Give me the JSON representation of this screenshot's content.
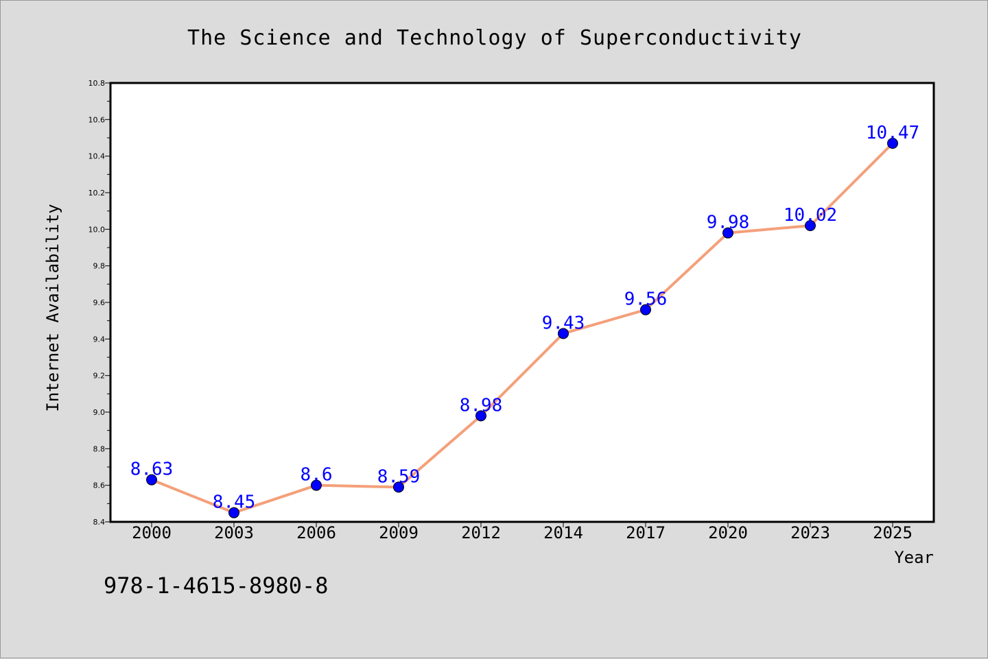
{
  "chart_data": {
    "type": "line",
    "title": "The Science and Technology of Superconductivity",
    "xlabel": "Year",
    "ylabel": "Internet Availability",
    "categories": [
      "2000",
      "2003",
      "2006",
      "2009",
      "2012",
      "2014",
      "2017",
      "2020",
      "2023",
      "2025"
    ],
    "series": [
      {
        "values": [
          8.63,
          8.45,
          8.6,
          8.59,
          8.98,
          9.43,
          9.56,
          9.98,
          10.02,
          10.47
        ],
        "labels": [
          "8.63",
          "8.45",
          "8.6",
          "8.59",
          "8.98",
          "9.43",
          "9.56",
          "9.98",
          "10.02",
          "10.47"
        ]
      }
    ],
    "ylim": [
      8.4,
      10.8
    ],
    "yticks": [
      "8.4",
      "8.6",
      "8.8",
      "9.0",
      "9.2",
      "9.4",
      "9.6",
      "9.8",
      "10.0",
      "10.2",
      "10.4",
      "10.6",
      "10.8"
    ],
    "grid": false,
    "line_color": "#f4a07a",
    "marker_color": "#0000ff",
    "label_color": "#0000ff"
  },
  "footer_text": "978-1-4615-8980-8"
}
